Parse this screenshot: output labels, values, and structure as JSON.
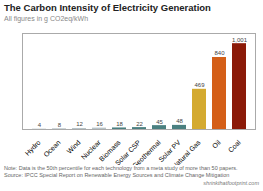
{
  "chart_data": {
    "type": "bar",
    "title": "The Carbon Intensity of Electricity Generation",
    "subtitle": "All figures in g CO2eq/kWh",
    "categories": [
      "Hydro",
      "Ocean",
      "Wind",
      "Nuclear",
      "Biomass",
      "Solar CSP",
      "Geothermal",
      "Solar PV",
      "Natural Gas",
      "Oil",
      "Coal"
    ],
    "values": [
      4,
      8,
      12,
      16,
      18,
      22,
      45,
      48,
      469,
      840,
      1001
    ],
    "value_labels": [
      "4",
      "8",
      "12",
      "16",
      "18",
      "22",
      "45",
      "48",
      "469",
      "840",
      "1,001"
    ],
    "colors": [
      "#b8c4c8",
      "#b8c4c8",
      "#b8c4c8",
      "#b8c4c8",
      "#4a8080",
      "#4a8080",
      "#4a8080",
      "#4a8080",
      "#d4aa30",
      "#d45f18",
      "#8b1a08"
    ],
    "ylim": [
      0,
      1120
    ],
    "data_labels": true,
    "tick_labels": "x",
    "grid": false,
    "note": "Note: Data is the 50th percentile for each technology from a meta study of more than 50 papers.\nSource: IPCC Special Report on Renewable Energy Sources and Climate Change Mitigation",
    "footer": "shrinkthatfootprint.com"
  }
}
